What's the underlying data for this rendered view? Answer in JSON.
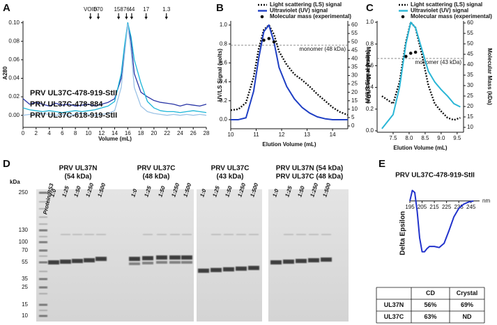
{
  "chart_data": [
    {
      "label": "A",
      "type": "line",
      "xlabel": "Volume (mL)",
      "ylabel": "A280",
      "xlim": [
        0,
        28
      ],
      "xticks": [
        0,
        2,
        4,
        6,
        8,
        10,
        12,
        14,
        16,
        18,
        20,
        22,
        24,
        26,
        28
      ],
      "ylim": [
        -0.013,
        0.102
      ],
      "yticks": [
        {
          "value": 0,
          "label": "0.00"
        },
        {
          "value": 0.02,
          "label": "0.02"
        },
        {
          "value": 0.04,
          "label": "0.04"
        },
        {
          "value": 0.06,
          "label": "0.06"
        },
        {
          "value": 0.08,
          "label": "0.08"
        },
        {
          "value": 0.1,
          "label": "0.10"
        }
      ],
      "legend": "lower left",
      "size_markers": [
        {
          "label": "VOID",
          "x": 10.3
        },
        {
          "label": "670",
          "x": 11.5
        },
        {
          "label": "158",
          "x": 14.6
        },
        {
          "label": "76",
          "x": 15.8
        },
        {
          "label": "44",
          "x": 16.6
        },
        {
          "label": "17",
          "x": 18.8
        },
        {
          "label": "1.3",
          "x": 21.9
        }
      ],
      "x": [
        0,
        1,
        2,
        3,
        4,
        5,
        6,
        7,
        8,
        9,
        10,
        11,
        12,
        13,
        14,
        15,
        15.5,
        16,
        16.5,
        17,
        18,
        19,
        20,
        21,
        22,
        23,
        24,
        25,
        26,
        27,
        28
      ],
      "series": [
        {
          "name": "PRV UL37C-478-919-StII",
          "color": "#2a36a6",
          "style": "solid",
          "values": [
            0.018,
            0.012,
            0.014,
            0.012,
            0.01,
            0.013,
            0.011,
            0.012,
            0.01,
            0.011,
            0.012,
            0.01,
            0.012,
            0.014,
            0.018,
            0.04,
            0.07,
            0.1,
            0.08,
            0.045,
            0.025,
            0.02,
            0.016,
            0.014,
            0.013,
            0.012,
            0.01,
            0.012,
            0.011,
            0.01,
            0.012
          ]
        },
        {
          "name": "PRV UL37C-478-884",
          "color": "#1cb6d8",
          "style": "solid",
          "values": [
            0.008,
            0.006,
            0.005,
            0.004,
            0.005,
            0.004,
            0.003,
            0.004,
            0.005,
            0.004,
            0.005,
            0.006,
            0.008,
            0.01,
            0.015,
            0.045,
            0.075,
            0.1,
            0.085,
            0.06,
            0.035,
            0.015,
            0.008,
            0.005,
            0.004,
            0.004,
            0.003,
            0.004,
            0.005,
            0.004,
            0.003
          ]
        },
        {
          "name": "PRV UL37C-618-919-StII",
          "color": "#9cc3e6",
          "style": "solid",
          "values": [
            0.0,
            0.001,
            0.0,
            0.002,
            0.001,
            0.0,
            0.001,
            0.0,
            0.001,
            0.002,
            0.001,
            0.0,
            0.001,
            0.002,
            0.005,
            0.03,
            0.065,
            0.098,
            0.07,
            0.03,
            0.01,
            0.004,
            0.002,
            0.001,
            0.0,
            0.001,
            0.0,
            0.001,
            0.0,
            0.001,
            0.0
          ]
        }
      ]
    },
    {
      "label": "B",
      "type": "line",
      "xlabel": "Elution Volume (mL)",
      "ylabel": "UV/LS Signal (volts)",
      "y2label": "Molecular Mass (kDa)",
      "xlim": [
        10,
        14.6
      ],
      "xticks": [
        10,
        11,
        12,
        13,
        14
      ],
      "ylim": [
        -0.096,
        1.044
      ],
      "yticks": [
        {
          "value": 0,
          "label": "0.0"
        },
        0.2,
        0.4,
        0.6,
        0.8,
        {
          "value": 1,
          "label": "1.0"
        }
      ],
      "y2lim": [
        -1.65,
        62.5
      ],
      "y2ticks": [
        0,
        5,
        10,
        15,
        20,
        25,
        30,
        35,
        40,
        45,
        50,
        55,
        60
      ],
      "legend": "top",
      "reference_lines": [
        {
          "axis": "y2",
          "value": 48,
          "label": "monomer (48 kDa)"
        }
      ],
      "x": [
        10,
        10.3,
        10.6,
        10.9,
        11.1,
        11.3,
        11.5,
        11.7,
        11.9,
        12.2,
        12.5,
        12.8,
        13.1,
        13.4,
        13.7,
        14.0,
        14.3,
        14.6
      ],
      "series": [
        {
          "name": "Light scattering (LS) signal",
          "color": "#111111",
          "style": "dotted",
          "values": [
            0.1,
            0.11,
            0.18,
            0.45,
            0.75,
            0.95,
            1.0,
            0.9,
            0.72,
            0.58,
            0.48,
            0.42,
            0.35,
            0.27,
            0.2,
            0.13,
            0.08,
            0.05
          ]
        },
        {
          "name": "Ultraviolet (UV) signal",
          "color": "#1f3fc4",
          "style": "solid",
          "values": [
            0,
            0,
            0.02,
            0.3,
            0.65,
            0.93,
            1.0,
            0.82,
            0.55,
            0.35,
            0.22,
            0.13,
            0.07,
            0.03,
            0.01,
            0,
            0,
            0
          ]
        },
        {
          "name": "Molecular mass (experimental)",
          "color": "#111111",
          "style": "points",
          "axis": "y2",
          "values": [
            null,
            null,
            null,
            null,
            null,
            51,
            52,
            50,
            null,
            null,
            null,
            null,
            null,
            null,
            null,
            null,
            null,
            null
          ]
        }
      ]
    },
    {
      "label": "C",
      "type": "line",
      "xlabel": "Elution Volume (mL)",
      "ylabel": "UV/LS Signal (volts)",
      "y2label": "Molecular Mass (kDa)",
      "xlim": [
        7.0,
        9.7
      ],
      "xticks": [
        7.5,
        {
          "value": 8,
          "label": "8.0"
        },
        8.5,
        {
          "value": 9,
          "label": "9.0"
        },
        9.5
      ],
      "ylim": [
        -0.013,
        1.013
      ],
      "yticks": [
        {
          "value": 0,
          "label": "0.0"
        },
        0.2,
        0.4,
        0.6,
        0.8,
        {
          "value": 1,
          "label": "1.0"
        }
      ],
      "y2lim": [
        7.67,
        61
      ],
      "y2ticks": [
        10,
        15,
        20,
        25,
        30,
        35,
        40,
        45,
        50,
        55,
        60
      ],
      "legend": "top",
      "reference_lines": [
        {
          "axis": "y2",
          "value": 43,
          "label": "monomer (43 kDa)"
        }
      ],
      "x": [
        7.15,
        7.5,
        7.7,
        7.9,
        8.05,
        8.2,
        8.4,
        8.6,
        8.8,
        9.0,
        9.2,
        9.4,
        9.6
      ],
      "series": [
        {
          "name": "Light scattering (LS) signal",
          "color": "#111111",
          "style": "dotted",
          "values": [
            0.32,
            0.25,
            0.45,
            0.82,
            1.0,
            0.95,
            0.7,
            0.42,
            0.25,
            0.18,
            0.12,
            0.1,
            0.12
          ]
        },
        {
          "name": "Ultraviolet (UV) signal",
          "color": "#2ab6d6",
          "style": "solid",
          "values": [
            0.02,
            0.15,
            0.4,
            0.8,
            1.0,
            0.95,
            0.75,
            0.55,
            0.45,
            0.38,
            0.32,
            0.25,
            0.22
          ]
        },
        {
          "name": "Molecular mass (experimental)",
          "color": "#111111",
          "style": "points",
          "axis": "y2",
          "values": [
            null,
            null,
            null,
            44,
            45.5,
            46,
            null,
            null,
            null,
            null,
            null,
            null,
            null
          ]
        }
      ]
    },
    {
      "label": "E",
      "type": "line",
      "title": "PRV UL37C-478-919-StII",
      "ylabel": "Delta Epsilon",
      "x_unit": "nm",
      "xlim": [
        195,
        252
      ],
      "xticks": [
        195,
        205,
        215,
        225,
        235,
        245
      ],
      "ylim": [
        -60,
        15
      ],
      "x": [
        195,
        197,
        199,
        201,
        203,
        205,
        207,
        209,
        211,
        215,
        219,
        223,
        227,
        231,
        235,
        239,
        243,
        247
      ],
      "series": [
        {
          "name": "PRV UL37C-478-919-StII",
          "color": "#2233cc",
          "style": "solid",
          "values": [
            0,
            10,
            8,
            -10,
            -35,
            -48,
            -48,
            -45,
            -43,
            -43,
            -44,
            -40,
            -28,
            -15,
            -7,
            -3,
            -1,
            0
          ]
        }
      ]
    }
  ],
  "table": {
    "columns": [
      "CD",
      "Crystal"
    ],
    "rows": [
      {
        "name": "UL37N",
        "values": [
          "56%",
          "69%"
        ]
      },
      {
        "name": "UL37C",
        "values": [
          "63%",
          "ND"
        ]
      }
    ]
  },
  "gel_panel": {
    "label": "D",
    "unit": "kDa",
    "ladder_lane": "Protein/BS3",
    "markers": [
      "250",
      "130",
      "100",
      "70",
      "55",
      "35",
      "25",
      "15",
      "10"
    ],
    "groups": [
      {
        "title": [
          "PRV UL37N",
          "(54 kDa)"
        ],
        "lanes": [
          "1:0",
          "1:25",
          "1:50",
          "1:250",
          "1:500"
        ]
      },
      {
        "title": [
          "PRV UL37C",
          "(48 kDa)"
        ],
        "lanes": [
          "1:0",
          "1:25",
          "1:50",
          "1:250",
          "1:500"
        ]
      },
      {
        "title": [
          "PRV UL37C",
          "(43 kDa)"
        ],
        "lanes": [
          "1:0",
          "1:25",
          "1:50",
          "1:250",
          "1:500"
        ]
      },
      {
        "title": [
          "PRV UL37N (54 kDa)",
          "PRV UL37C (48 kDa)"
        ],
        "lanes": [
          "1:0",
          "1:25",
          "1:50",
          "1:250",
          "1:500"
        ]
      }
    ]
  }
}
